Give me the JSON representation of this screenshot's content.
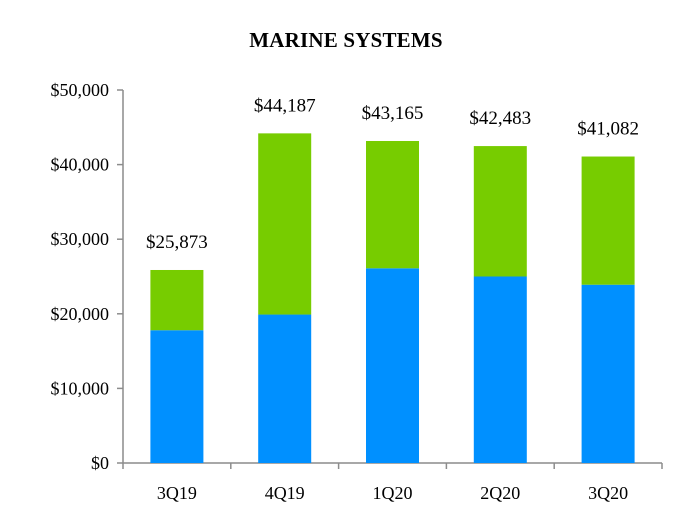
{
  "chart_data": {
    "type": "bar",
    "stacked": true,
    "title": "MARINE SYSTEMS",
    "xlabel": "",
    "ylabel": "",
    "categories": [
      "3Q19",
      "4Q19",
      "1Q20",
      "2Q20",
      "3Q20"
    ],
    "series": [
      {
        "color": "#0090ff",
        "values": [
          17800,
          19900,
          26100,
          25000,
          23900
        ]
      },
      {
        "color": "#77cc00",
        "values": [
          8073,
          24287,
          17065,
          17483,
          17182
        ]
      }
    ],
    "totals": [
      25873,
      44187,
      43165,
      42483,
      41082
    ],
    "total_labels": [
      "$25,873",
      "$44,187",
      "$43,165",
      "$42,483",
      "$41,082"
    ],
    "ylim": [
      0,
      50000
    ],
    "yticks": [
      0,
      10000,
      20000,
      30000,
      40000,
      50000
    ],
    "ytick_labels": [
      "$0",
      "$10,000",
      "$20,000",
      "$30,000",
      "$40,000",
      "$50,000"
    ],
    "grid": false,
    "legend": "none"
  }
}
